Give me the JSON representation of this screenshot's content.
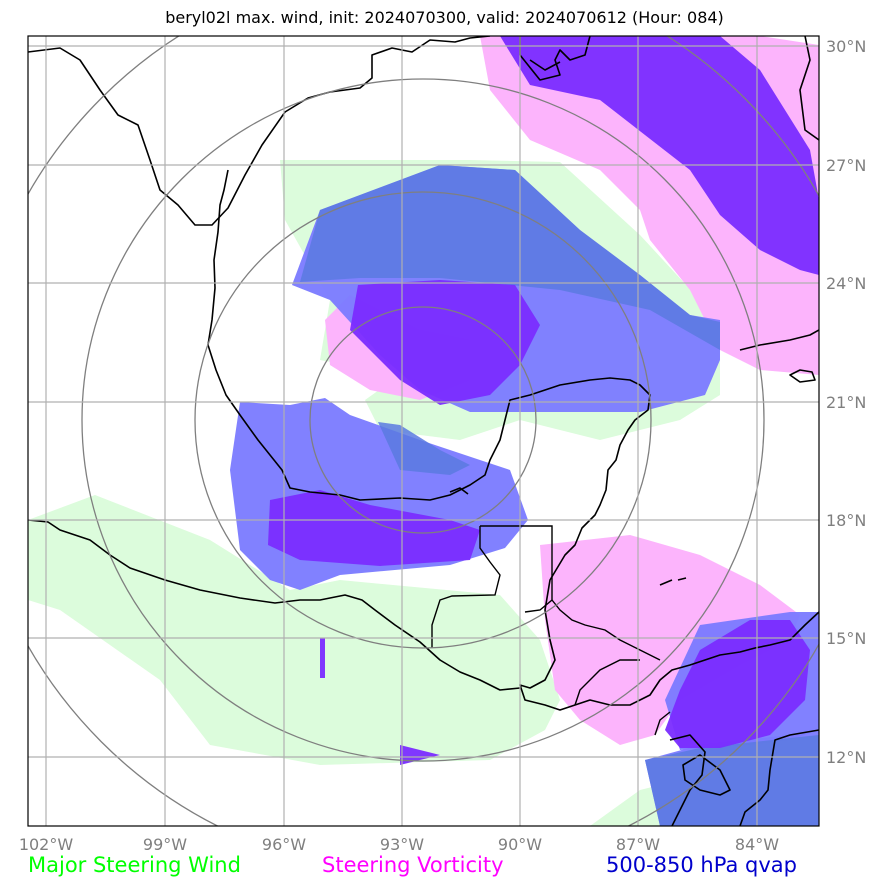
{
  "title": "beryl02l max. wind, init: 2024070300, valid: 2024070612 (Hour: 084)",
  "lon_ticks": [
    "102°W",
    "99°W",
    "96°W",
    "93°W",
    "90°W",
    "87°W",
    "84°W"
  ],
  "lat_ticks": [
    "30°N",
    "27°N",
    "24°N",
    "21°N",
    "18°N",
    "15°N",
    "12°N"
  ],
  "legend": {
    "steering_wind": "Major Steering Wind",
    "steering_vorticity": "Steering Vorticity",
    "qvap": "500-850 hPa qvap"
  },
  "colors": {
    "steering_wind": "#00ff00",
    "steering_vorticity": "#ff00ff",
    "qvap": "#0000cc",
    "wind_fill": "#dcfcdc",
    "vorticity_fill": "#fcb4fc",
    "qvap_light": "#7a7aff",
    "qvap_dark": "#7a2cff",
    "tick_text": "#7f7f7f"
  }
}
